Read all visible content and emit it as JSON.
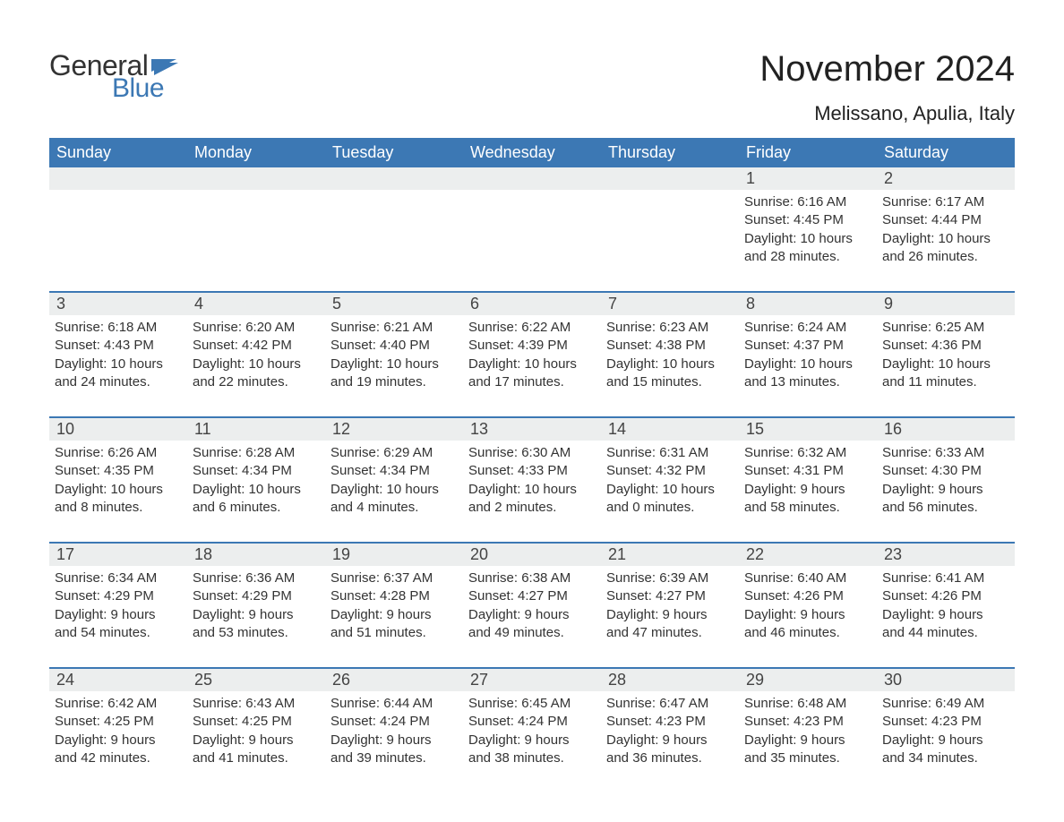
{
  "brand": {
    "word1": "General",
    "word2": "Blue",
    "color_general": "#333333",
    "color_blue": "#3c78b4",
    "flag_color": "#3c78b4"
  },
  "header": {
    "month_title": "November 2024",
    "location": "Melissano, Apulia, Italy"
  },
  "styling": {
    "header_bg": "#3c78b4",
    "header_text": "#ffffff",
    "daynum_bg": "#eceeee",
    "week_border": "#3c78b4",
    "body_text": "#333333",
    "page_bg": "#ffffff",
    "title_fontsize": 40,
    "location_fontsize": 22,
    "weekday_fontsize": 18,
    "daynum_fontsize": 18,
    "detail_fontsize": 15
  },
  "weekdays": [
    "Sunday",
    "Monday",
    "Tuesday",
    "Wednesday",
    "Thursday",
    "Friday",
    "Saturday"
  ],
  "weeks": [
    [
      null,
      null,
      null,
      null,
      null,
      {
        "day": "1",
        "sunrise": "Sunrise: 6:16 AM",
        "sunset": "Sunset: 4:45 PM",
        "daylight1": "Daylight: 10 hours",
        "daylight2": "and 28 minutes."
      },
      {
        "day": "2",
        "sunrise": "Sunrise: 6:17 AM",
        "sunset": "Sunset: 4:44 PM",
        "daylight1": "Daylight: 10 hours",
        "daylight2": "and 26 minutes."
      }
    ],
    [
      {
        "day": "3",
        "sunrise": "Sunrise: 6:18 AM",
        "sunset": "Sunset: 4:43 PM",
        "daylight1": "Daylight: 10 hours",
        "daylight2": "and 24 minutes."
      },
      {
        "day": "4",
        "sunrise": "Sunrise: 6:20 AM",
        "sunset": "Sunset: 4:42 PM",
        "daylight1": "Daylight: 10 hours",
        "daylight2": "and 22 minutes."
      },
      {
        "day": "5",
        "sunrise": "Sunrise: 6:21 AM",
        "sunset": "Sunset: 4:40 PM",
        "daylight1": "Daylight: 10 hours",
        "daylight2": "and 19 minutes."
      },
      {
        "day": "6",
        "sunrise": "Sunrise: 6:22 AM",
        "sunset": "Sunset: 4:39 PM",
        "daylight1": "Daylight: 10 hours",
        "daylight2": "and 17 minutes."
      },
      {
        "day": "7",
        "sunrise": "Sunrise: 6:23 AM",
        "sunset": "Sunset: 4:38 PM",
        "daylight1": "Daylight: 10 hours",
        "daylight2": "and 15 minutes."
      },
      {
        "day": "8",
        "sunrise": "Sunrise: 6:24 AM",
        "sunset": "Sunset: 4:37 PM",
        "daylight1": "Daylight: 10 hours",
        "daylight2": "and 13 minutes."
      },
      {
        "day": "9",
        "sunrise": "Sunrise: 6:25 AM",
        "sunset": "Sunset: 4:36 PM",
        "daylight1": "Daylight: 10 hours",
        "daylight2": "and 11 minutes."
      }
    ],
    [
      {
        "day": "10",
        "sunrise": "Sunrise: 6:26 AM",
        "sunset": "Sunset: 4:35 PM",
        "daylight1": "Daylight: 10 hours",
        "daylight2": "and 8 minutes."
      },
      {
        "day": "11",
        "sunrise": "Sunrise: 6:28 AM",
        "sunset": "Sunset: 4:34 PM",
        "daylight1": "Daylight: 10 hours",
        "daylight2": "and 6 minutes."
      },
      {
        "day": "12",
        "sunrise": "Sunrise: 6:29 AM",
        "sunset": "Sunset: 4:34 PM",
        "daylight1": "Daylight: 10 hours",
        "daylight2": "and 4 minutes."
      },
      {
        "day": "13",
        "sunrise": "Sunrise: 6:30 AM",
        "sunset": "Sunset: 4:33 PM",
        "daylight1": "Daylight: 10 hours",
        "daylight2": "and 2 minutes."
      },
      {
        "day": "14",
        "sunrise": "Sunrise: 6:31 AM",
        "sunset": "Sunset: 4:32 PM",
        "daylight1": "Daylight: 10 hours",
        "daylight2": "and 0 minutes."
      },
      {
        "day": "15",
        "sunrise": "Sunrise: 6:32 AM",
        "sunset": "Sunset: 4:31 PM",
        "daylight1": "Daylight: 9 hours",
        "daylight2": "and 58 minutes."
      },
      {
        "day": "16",
        "sunrise": "Sunrise: 6:33 AM",
        "sunset": "Sunset: 4:30 PM",
        "daylight1": "Daylight: 9 hours",
        "daylight2": "and 56 minutes."
      }
    ],
    [
      {
        "day": "17",
        "sunrise": "Sunrise: 6:34 AM",
        "sunset": "Sunset: 4:29 PM",
        "daylight1": "Daylight: 9 hours",
        "daylight2": "and 54 minutes."
      },
      {
        "day": "18",
        "sunrise": "Sunrise: 6:36 AM",
        "sunset": "Sunset: 4:29 PM",
        "daylight1": "Daylight: 9 hours",
        "daylight2": "and 53 minutes."
      },
      {
        "day": "19",
        "sunrise": "Sunrise: 6:37 AM",
        "sunset": "Sunset: 4:28 PM",
        "daylight1": "Daylight: 9 hours",
        "daylight2": "and 51 minutes."
      },
      {
        "day": "20",
        "sunrise": "Sunrise: 6:38 AM",
        "sunset": "Sunset: 4:27 PM",
        "daylight1": "Daylight: 9 hours",
        "daylight2": "and 49 minutes."
      },
      {
        "day": "21",
        "sunrise": "Sunrise: 6:39 AM",
        "sunset": "Sunset: 4:27 PM",
        "daylight1": "Daylight: 9 hours",
        "daylight2": "and 47 minutes."
      },
      {
        "day": "22",
        "sunrise": "Sunrise: 6:40 AM",
        "sunset": "Sunset: 4:26 PM",
        "daylight1": "Daylight: 9 hours",
        "daylight2": "and 46 minutes."
      },
      {
        "day": "23",
        "sunrise": "Sunrise: 6:41 AM",
        "sunset": "Sunset: 4:26 PM",
        "daylight1": "Daylight: 9 hours",
        "daylight2": "and 44 minutes."
      }
    ],
    [
      {
        "day": "24",
        "sunrise": "Sunrise: 6:42 AM",
        "sunset": "Sunset: 4:25 PM",
        "daylight1": "Daylight: 9 hours",
        "daylight2": "and 42 minutes."
      },
      {
        "day": "25",
        "sunrise": "Sunrise: 6:43 AM",
        "sunset": "Sunset: 4:25 PM",
        "daylight1": "Daylight: 9 hours",
        "daylight2": "and 41 minutes."
      },
      {
        "day": "26",
        "sunrise": "Sunrise: 6:44 AM",
        "sunset": "Sunset: 4:24 PM",
        "daylight1": "Daylight: 9 hours",
        "daylight2": "and 39 minutes."
      },
      {
        "day": "27",
        "sunrise": "Sunrise: 6:45 AM",
        "sunset": "Sunset: 4:24 PM",
        "daylight1": "Daylight: 9 hours",
        "daylight2": "and 38 minutes."
      },
      {
        "day": "28",
        "sunrise": "Sunrise: 6:47 AM",
        "sunset": "Sunset: 4:23 PM",
        "daylight1": "Daylight: 9 hours",
        "daylight2": "and 36 minutes."
      },
      {
        "day": "29",
        "sunrise": "Sunrise: 6:48 AM",
        "sunset": "Sunset: 4:23 PM",
        "daylight1": "Daylight: 9 hours",
        "daylight2": "and 35 minutes."
      },
      {
        "day": "30",
        "sunrise": "Sunrise: 6:49 AM",
        "sunset": "Sunset: 4:23 PM",
        "daylight1": "Daylight: 9 hours",
        "daylight2": "and 34 minutes."
      }
    ]
  ]
}
